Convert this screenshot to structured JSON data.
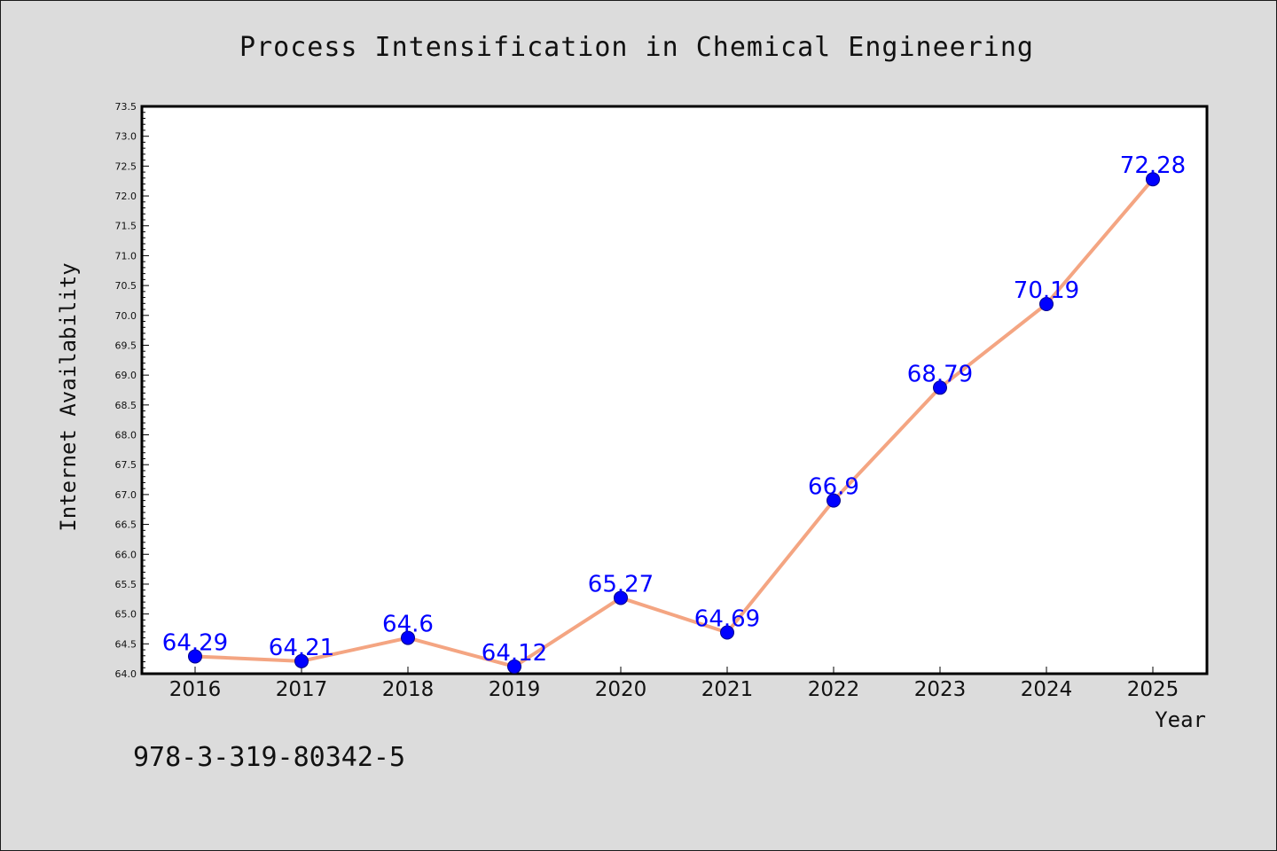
{
  "chart_data": {
    "type": "line",
    "title": "Process Intensification in Chemical Engineering",
    "xlabel": "Year",
    "ylabel": "Internet Availability",
    "categories": [
      "2016",
      "2017",
      "2018",
      "2019",
      "2020",
      "2021",
      "2022",
      "2023",
      "2024",
      "2025"
    ],
    "values": [
      64.29,
      64.21,
      64.6,
      64.12,
      65.27,
      64.69,
      66.9,
      68.79,
      70.19,
      72.28
    ],
    "data_labels": [
      "64.29",
      "64.21",
      "64.6",
      "64.12",
      "65.27",
      "64.69",
      "66.9",
      "68.79",
      "70.19",
      "72.28"
    ],
    "ylim": [
      64.0,
      73.5
    ],
    "yticks": [
      "64.0",
      "64.5",
      "65.0",
      "65.5",
      "66.0",
      "66.5",
      "67.0",
      "67.5",
      "68.0",
      "68.5",
      "69.0",
      "69.5",
      "70.0",
      "70.5",
      "71.0",
      "71.5",
      "72.0",
      "72.5",
      "73.0",
      "73.5"
    ],
    "grid": false,
    "line_color": "#f4a582",
    "marker_color": "#0000ff",
    "label_color": "#0000ff"
  },
  "footer": {
    "code": "978-3-319-80342-5"
  },
  "colors": {
    "background": "#dcdcdc",
    "plot_background": "#ffffff"
  }
}
